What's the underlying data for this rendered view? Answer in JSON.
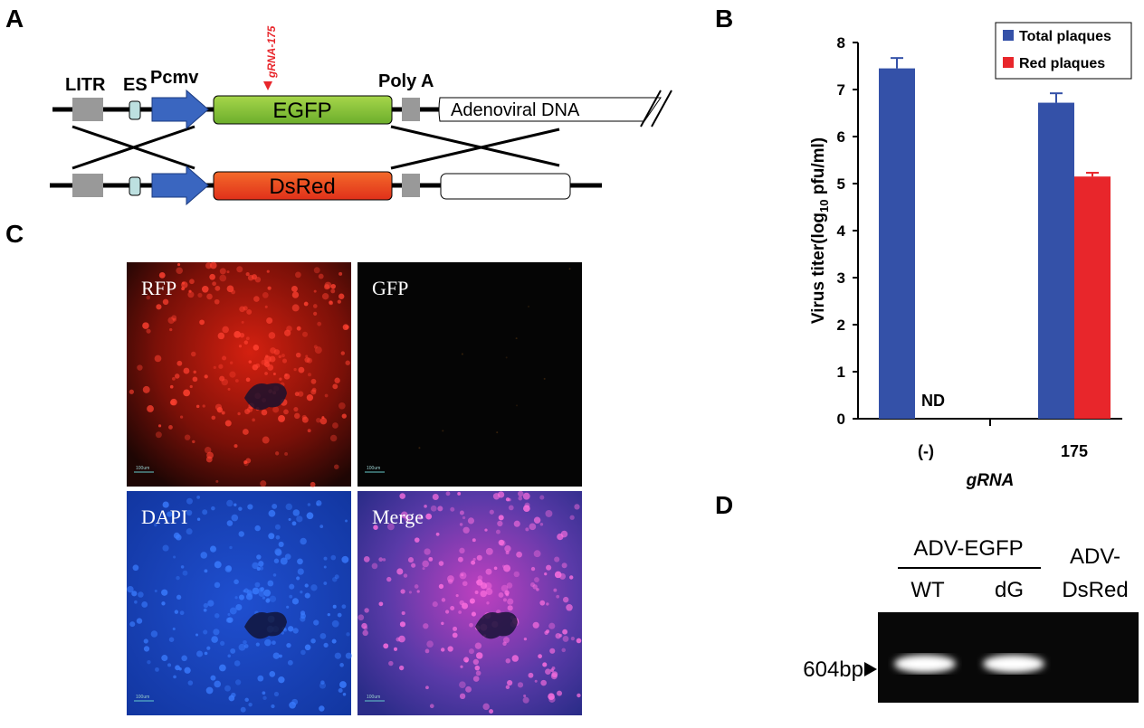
{
  "panels": {
    "a": "A",
    "b": "B",
    "c": "C",
    "d": "D"
  },
  "diagram": {
    "litr": "LITR",
    "es": "ES",
    "pcmv": "Pcmv",
    "grna": "gRNA-175",
    "egfp": "EGFP",
    "polya": "Poly A",
    "adeno": "Adenoviral DNA",
    "dsred": "DsRed"
  },
  "chart_data": {
    "type": "bar",
    "categories": [
      "(-)",
      "175"
    ],
    "series": [
      {
        "name": "Total plaques",
        "color": "#3451a8",
        "values": [
          7.45,
          6.72
        ],
        "errors": [
          0.22,
          0.2
        ]
      },
      {
        "name": "Red plaques",
        "color": "#e8262b",
        "values": [
          null,
          5.15
        ],
        "errors": [
          null,
          0.08
        ]
      }
    ],
    "ylim": [
      0,
      8
    ],
    "yticks": [
      0,
      1,
      2,
      3,
      4,
      5,
      6,
      7,
      8
    ],
    "y_label": {
      "text": "Virus titer(log",
      "sub": "10",
      "rest": " pfu/ml)"
    },
    "x_label": "gRNA",
    "annotation": "ND",
    "legend": "top-right"
  },
  "microscopy": {
    "labels": [
      "RFP",
      "GFP",
      "DAPI",
      "Merge"
    ],
    "scale_label": "100um"
  },
  "gel": {
    "group": "ADV-EGFP",
    "lanes": [
      "WT",
      "dG"
    ],
    "control": [
      "ADV-",
      "DsRed"
    ],
    "marker": "604bp"
  }
}
